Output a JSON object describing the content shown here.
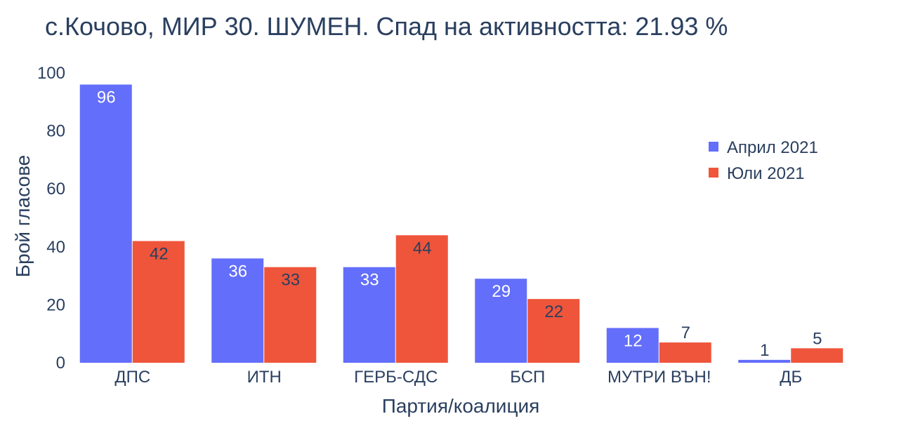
{
  "chart_data": {
    "type": "bar",
    "title": "с.Кочово, МИР 30. ШУМЕН. Спад на активността: 21.93 %",
    "xlabel": "Партия/коалиция",
    "ylabel": "Брой гласове",
    "categories": [
      "ДПС",
      "ИТН",
      "ГЕРБ-СДС",
      "БСП",
      "МУТРИ ВЪН!",
      "ДБ"
    ],
    "series": [
      {
        "name": "Април 2021",
        "color": "#636efa",
        "values": [
          96,
          36,
          33,
          29,
          12,
          1
        ]
      },
      {
        "name": "Юли 2021",
        "color": "#ef553b",
        "values": [
          42,
          33,
          44,
          22,
          7,
          5
        ]
      }
    ],
    "ylim": [
      0,
      100
    ],
    "yticks": [
      0,
      20,
      40,
      60,
      80,
      100
    ],
    "grid": false,
    "legend_position": "right"
  }
}
